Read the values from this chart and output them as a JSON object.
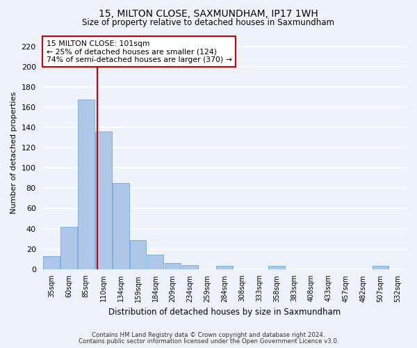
{
  "title1": "15, MILTON CLOSE, SAXMUNDHAM, IP17 1WH",
  "title2": "Size of property relative to detached houses in Saxmundham",
  "xlabel": "Distribution of detached houses by size in Saxmundham",
  "ylabel": "Number of detached properties",
  "footnote1": "Contains HM Land Registry data © Crown copyright and database right 2024.",
  "footnote2": "Contains public sector information licensed under the Open Government Licence v3.0.",
  "categories": [
    "35sqm",
    "60sqm",
    "85sqm",
    "110sqm",
    "134sqm",
    "159sqm",
    "184sqm",
    "209sqm",
    "234sqm",
    "259sqm",
    "284sqm",
    "308sqm",
    "333sqm",
    "358sqm",
    "383sqm",
    "408sqm",
    "433sqm",
    "457sqm",
    "482sqm",
    "507sqm",
    "532sqm"
  ],
  "values": [
    13,
    42,
    168,
    136,
    85,
    29,
    14,
    6,
    4,
    0,
    3,
    0,
    0,
    3,
    0,
    0,
    0,
    0,
    0,
    3,
    0
  ],
  "bar_color": "#aec6e8",
  "bar_edge_color": "#5a9fd4",
  "background_color": "#eef2fa",
  "grid_color": "#ffffff",
  "vline_color": "#cc0000",
  "vline_x": 2.64,
  "annotation_title": "15 MILTON CLOSE: 101sqm",
  "annotation_line1": "← 25% of detached houses are smaller (124)",
  "annotation_line2": "74% of semi-detached houses are larger (370) →",
  "annotation_box_color": "#ffffff",
  "annotation_edge_color": "#cc0000",
  "ylim": [
    0,
    230
  ],
  "yticks": [
    0,
    20,
    40,
    60,
    80,
    100,
    120,
    140,
    160,
    180,
    200,
    220
  ]
}
